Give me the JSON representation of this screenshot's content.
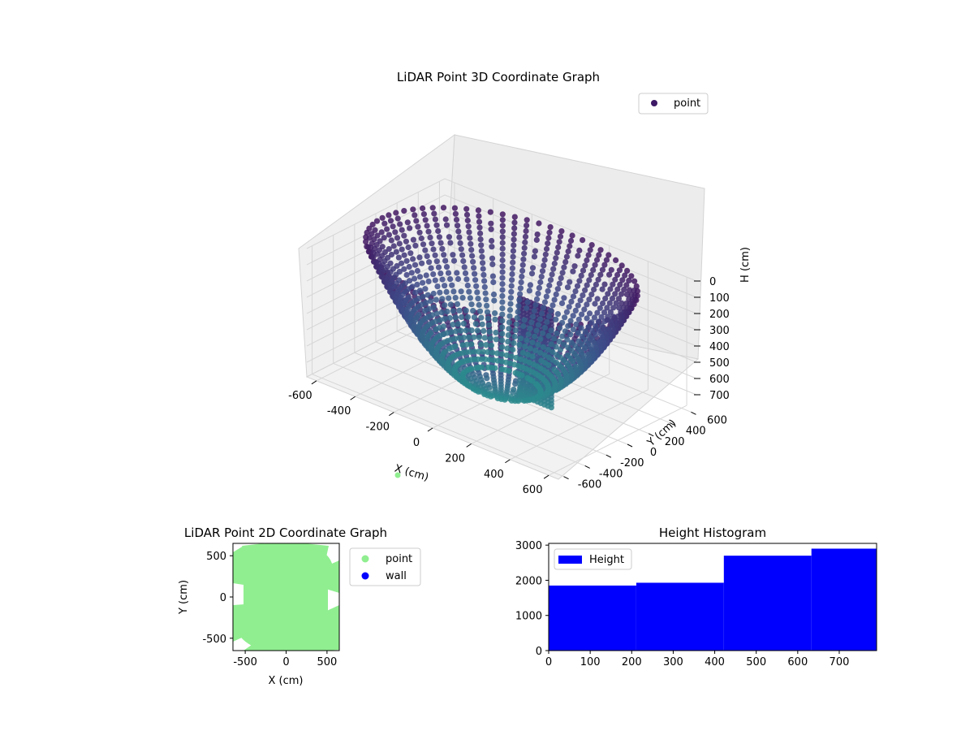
{
  "chart_data": [
    {
      "type": "scatter3d",
      "title": "LiDAR Point 3D Coordinate Graph",
      "xlabel": "X (cm)",
      "ylabel": "Y (cm)",
      "zlabel": "H (cm)",
      "xlim": [
        -650,
        650
      ],
      "ylim": [
        -650,
        650
      ],
      "zlim": [
        0,
        790
      ],
      "z_inverted": true,
      "xticks": [
        "-600",
        "-400",
        "-200",
        "0",
        "200",
        "400",
        "600"
      ],
      "yticks": [
        "-600",
        "-400",
        "-200",
        "0",
        "200",
        "400",
        "600"
      ],
      "zticks": [
        "0",
        "100",
        "200",
        "300",
        "400",
        "500",
        "600",
        "700"
      ],
      "legend": {
        "placement": "upper-right",
        "entries": [
          {
            "label": "point",
            "color": "#3e1a66"
          }
        ]
      },
      "colormap": "viridis",
      "color_by": "H (cm)",
      "structure": {
        "bowl_radius_at_top": 620,
        "bowl_depth": 760,
        "colors": {
          "top": "#431862",
          "middle": "#3d4d8a",
          "bottom": "#2b8e8d"
        }
      }
    },
    {
      "type": "scatter",
      "title": "LiDAR Point 2D Coordinate Graph",
      "xlabel": "X (cm)",
      "ylabel": "Y (cm)",
      "xlim": [
        -650,
        650
      ],
      "ylim": [
        -650,
        650
      ],
      "xticks": [
        "-500",
        "0",
        "500"
      ],
      "yticks": [
        "-500",
        "0",
        "500"
      ],
      "series": [
        {
          "name": "point",
          "color": "#90ee90"
        },
        {
          "name": "wall",
          "color": "#0000ff"
        }
      ],
      "legend": {
        "placement": "outside-right"
      }
    },
    {
      "type": "bar",
      "title": "Height Histogram",
      "xlabel": "",
      "ylabel": "",
      "xlim": [
        0,
        790
      ],
      "ylim": [
        0,
        3050
      ],
      "bins": [
        {
          "from": 0,
          "to": 211,
          "value": 1850
        },
        {
          "from": 211,
          "to": 422,
          "value": 1930
        },
        {
          "from": 422,
          "to": 633,
          "value": 2700
        },
        {
          "from": 633,
          "to": 790,
          "value": 2900
        }
      ],
      "xticks": [
        "0",
        "100",
        "200",
        "300",
        "400",
        "500",
        "600",
        "700"
      ],
      "yticks": [
        "0",
        "1000",
        "2000",
        "3000"
      ],
      "series": [
        {
          "name": "Height",
          "color": "#0000ff"
        }
      ],
      "legend": {
        "placement": "upper-left"
      }
    }
  ]
}
